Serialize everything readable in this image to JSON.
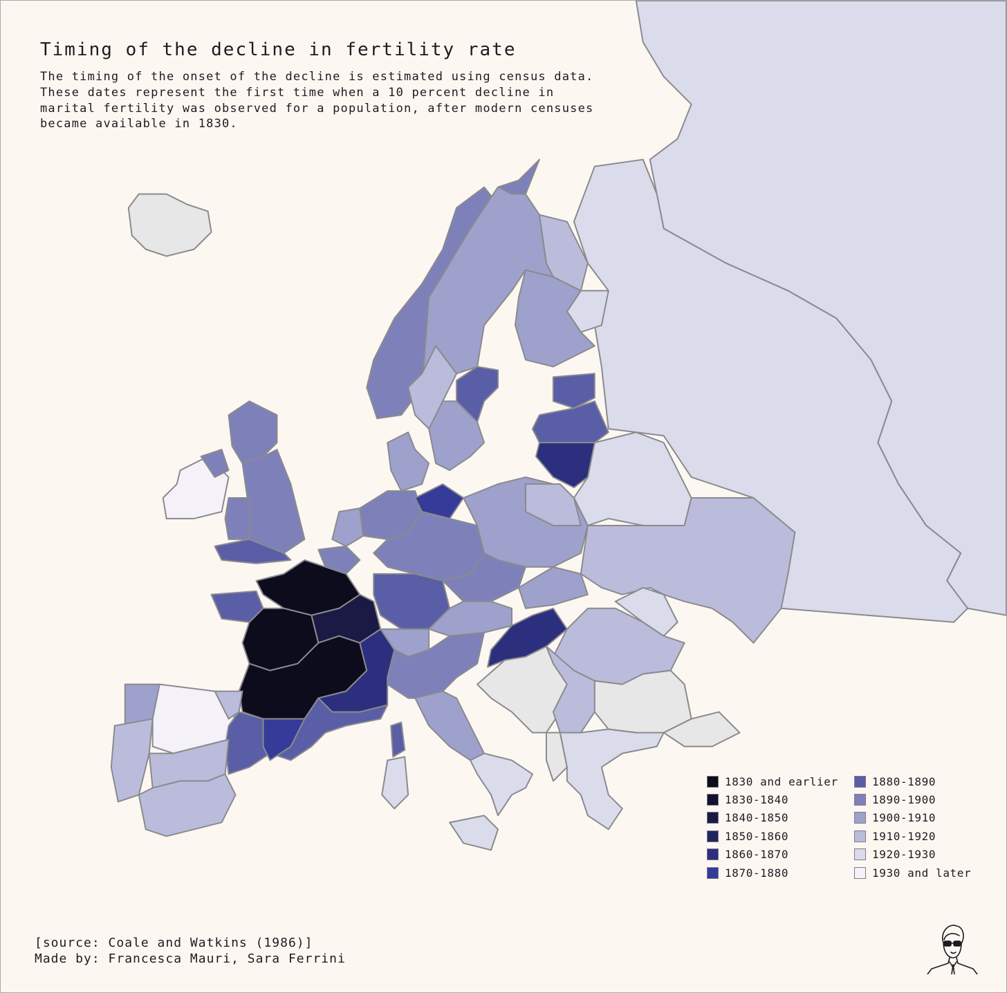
{
  "title": "Timing of the decline in fertility rate",
  "subtitle_lines": [
    "The timing of the onset of the decline is estimated using census data.",
    "These dates represent the first time when a 10 percent decline in",
    "marital fertility was observed for a population, after modern censuses",
    "became available in 1830."
  ],
  "legend": [
    {
      "key": "le1830",
      "label": "1830 and earlier",
      "color": "#0d0c1c"
    },
    {
      "key": "d1830",
      "label": "1830-1840",
      "color": "#13122e"
    },
    {
      "key": "d1840",
      "label": "1840-1850",
      "color": "#1a1a45"
    },
    {
      "key": "d1850",
      "label": "1850-1860",
      "color": "#22245e"
    },
    {
      "key": "d1860",
      "label": "1860-1870",
      "color": "#2b2f7d"
    },
    {
      "key": "d1870",
      "label": "1870-1880",
      "color": "#353b98"
    },
    {
      "key": "d1880",
      "label": "1880-1890",
      "color": "#5a5ea6"
    },
    {
      "key": "d1890",
      "label": "1890-1900",
      "color": "#7e81b9"
    },
    {
      "key": "d1900",
      "label": "1900-1910",
      "color": "#9ea1cb"
    },
    {
      "key": "d1910",
      "label": "1910-1920",
      "color": "#bbbcdb"
    },
    {
      "key": "d1920",
      "label": "1920-1930",
      "color": "#dadbeb"
    },
    {
      "key": "ge1930",
      "label": "1930 and later",
      "color": "#f4f1f8"
    }
  ],
  "colors": {
    "background": "#fdf7f2",
    "border": "#8a8a8e",
    "no_data": "#e7e7e7"
  },
  "regions": [
    {
      "id": "iceland",
      "period": "none"
    },
    {
      "id": "russia",
      "period": "d1920"
    },
    {
      "id": "belarus",
      "period": "d1920"
    },
    {
      "id": "ukraine",
      "period": "d1910"
    },
    {
      "id": "norway",
      "period": "d1890"
    },
    {
      "id": "sweden-north",
      "period": "d1900"
    },
    {
      "id": "sweden-south",
      "period": "d1900"
    },
    {
      "id": "sweden-west",
      "period": "d1910"
    },
    {
      "id": "sweden-east",
      "period": "d1880"
    },
    {
      "id": "finland-north",
      "period": "d1910"
    },
    {
      "id": "finland-east",
      "period": "d1920"
    },
    {
      "id": "finland-south",
      "period": "d1900"
    },
    {
      "id": "estonia",
      "period": "d1880"
    },
    {
      "id": "latvia",
      "period": "d1880"
    },
    {
      "id": "lithuania",
      "period": "d1860"
    },
    {
      "id": "ireland",
      "period": "ge1930"
    },
    {
      "id": "northern-ireland",
      "period": "d1890"
    },
    {
      "id": "scotland",
      "period": "d1890"
    },
    {
      "id": "england",
      "period": "d1890"
    },
    {
      "id": "wales",
      "period": "d1890"
    },
    {
      "id": "england-south",
      "period": "d1880"
    },
    {
      "id": "france-north",
      "period": "le1830"
    },
    {
      "id": "france-west",
      "period": "le1830"
    },
    {
      "id": "france-southwest",
      "period": "le1830"
    },
    {
      "id": "france-east",
      "period": "d1840"
    },
    {
      "id": "france-southeast",
      "period": "d1860"
    },
    {
      "id": "france-provence",
      "period": "d1880"
    },
    {
      "id": "brittany",
      "period": "d1880"
    },
    {
      "id": "belgium",
      "period": "d1890"
    },
    {
      "id": "netherlands",
      "period": "d1900"
    },
    {
      "id": "denmark",
      "period": "d1900"
    },
    {
      "id": "germany-north",
      "period": "d1890"
    },
    {
      "id": "germany-pomerania",
      "period": "d1870"
    },
    {
      "id": "germany-center",
      "period": "d1890"
    },
    {
      "id": "germany-south",
      "period": "d1880"
    },
    {
      "id": "poland",
      "period": "d1900"
    },
    {
      "id": "poland-east",
      "period": "d1910"
    },
    {
      "id": "czech",
      "period": "d1890"
    },
    {
      "id": "austria",
      "period": "d1900"
    },
    {
      "id": "hungary",
      "period": "d1860"
    },
    {
      "id": "slovakia",
      "period": "d1900"
    },
    {
      "id": "romania",
      "period": "d1910"
    },
    {
      "id": "moldova",
      "period": "d1920"
    },
    {
      "id": "yugoslavia",
      "period": "none"
    },
    {
      "id": "serbia",
      "period": "d1910"
    },
    {
      "id": "bulgaria",
      "period": "none"
    },
    {
      "id": "greece",
      "period": "d1920"
    },
    {
      "id": "albania",
      "period": "none"
    },
    {
      "id": "switzerland",
      "period": "d1900"
    },
    {
      "id": "italy-north",
      "period": "d1890"
    },
    {
      "id": "italy-center",
      "period": "d1900"
    },
    {
      "id": "italy-south",
      "period": "d1920"
    },
    {
      "id": "sicily",
      "period": "d1920"
    },
    {
      "id": "sardinia",
      "period": "d1920"
    },
    {
      "id": "corsica",
      "period": "d1880"
    },
    {
      "id": "spain-north",
      "period": "ge1930"
    },
    {
      "id": "spain-west",
      "period": "d1910"
    },
    {
      "id": "spain-south",
      "period": "d1910"
    },
    {
      "id": "catalonia",
      "period": "d1880"
    },
    {
      "id": "catalonia-coast",
      "period": "d1870"
    },
    {
      "id": "spain-basque",
      "period": "d1910"
    },
    {
      "id": "portugal",
      "period": "d1910"
    },
    {
      "id": "portugal-north",
      "period": "d1900"
    },
    {
      "id": "turkey",
      "period": "none"
    }
  ],
  "source": "[source: Coale and Watkins (1986)]",
  "credit": "Made by: Francesca Mauri, Sara Ferrini"
}
